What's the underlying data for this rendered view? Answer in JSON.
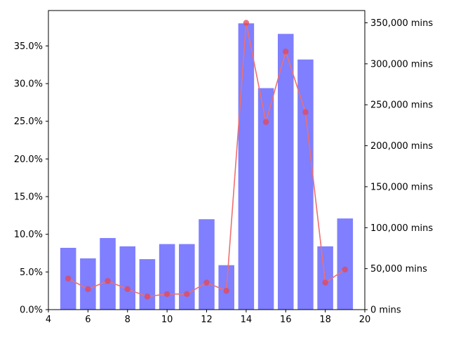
{
  "chart_data": {
    "type": "bar",
    "title": "",
    "xlabel": "",
    "ylabel": "",
    "x": [
      5,
      6,
      7,
      8,
      9,
      10,
      11,
      12,
      13,
      14,
      15,
      16,
      17,
      18,
      19
    ],
    "xlim": [
      4,
      20
    ],
    "x_ticks": [
      4,
      6,
      8,
      10,
      12,
      14,
      16,
      18,
      20
    ],
    "x_tick_labels": [
      "4",
      "6",
      "8",
      "10",
      "12",
      "14",
      "16",
      "18",
      "20"
    ],
    "grid": false,
    "legend": "none",
    "series": [
      {
        "type": "bar",
        "axis": "left",
        "color": "#7f7fff",
        "values": [
          8.2,
          6.8,
          9.5,
          8.4,
          6.7,
          8.7,
          8.7,
          12.0,
          5.9,
          38.0,
          29.4,
          36.6,
          33.2,
          8.4,
          12.1
        ]
      },
      {
        "type": "line",
        "axis": "right",
        "color": "#ef6f6f",
        "marker_color": "#e3455a",
        "values": [
          38000,
          25000,
          35000,
          25000,
          16000,
          19000,
          19000,
          33000,
          23000,
          350000,
          229000,
          315000,
          241000,
          33000,
          49000
        ]
      }
    ],
    "y_left": {
      "ylim": [
        0,
        39.7
      ],
      "ticks": [
        0,
        5,
        10,
        15,
        20,
        25,
        30,
        35
      ],
      "tick_labels": [
        "0.0%",
        "5.0%",
        "10.0%",
        "15.0%",
        "20.0%",
        "25.0%",
        "30.0%",
        "35.0%"
      ]
    },
    "y_right": {
      "ylim": [
        0,
        365000
      ],
      "ticks": [
        0,
        50000,
        100000,
        150000,
        200000,
        250000,
        300000,
        350000
      ],
      "tick_labels": [
        "0 mins",
        "50,000 mins",
        "100,000 mins",
        "150,000 mins",
        "200,000 mins",
        "250,000 mins",
        "300,000 mins",
        "350,000 mins"
      ]
    }
  }
}
